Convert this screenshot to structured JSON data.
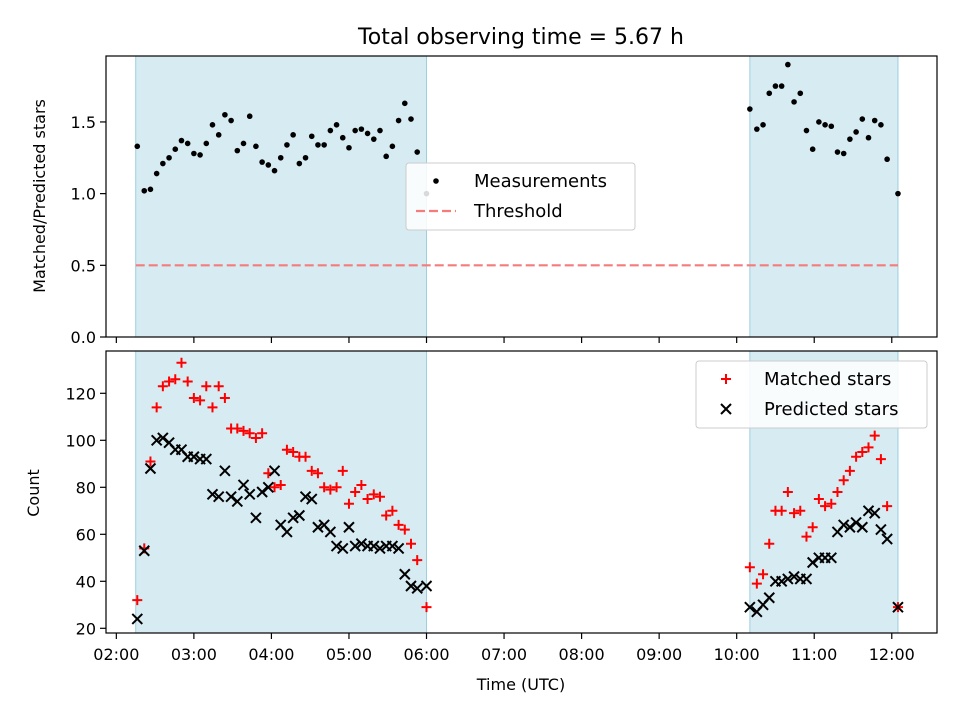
{
  "chart_data": [
    {
      "type": "scatter",
      "title": "Total observing time = 5.67 h",
      "ylabel": "Matched/Predicted stars",
      "xlabel": "",
      "ylim": [
        0,
        1.96
      ],
      "yticks": [
        "0.0",
        "0.5",
        "1.0",
        "1.5"
      ],
      "ytick_values": [
        0,
        0.5,
        1.0,
        1.5
      ],
      "xlim": [
        1.8667,
        12.5833
      ],
      "x_unit": "hours UTC",
      "shaded_intervals": [
        [
          2.25,
          6.0
        ],
        [
          10.17,
          12.08
        ]
      ],
      "threshold": 0.5,
      "threshold_range": [
        2.25,
        12.08
      ],
      "legend_placement": "center",
      "legend": [
        {
          "label": "Measurements",
          "marker": "dot",
          "color": "#000000"
        },
        {
          "label": "Threshold",
          "marker": "dashed-line",
          "color": "#f47c7c"
        }
      ],
      "series": [
        {
          "name": "Measurements",
          "color": "#000000",
          "x": [
            2.27,
            2.36,
            2.44,
            2.52,
            2.6,
            2.68,
            2.76,
            2.84,
            2.92,
            3.0,
            3.08,
            3.16,
            3.24,
            3.32,
            3.4,
            3.48,
            3.56,
            3.64,
            3.72,
            3.8,
            3.88,
            3.96,
            4.04,
            4.12,
            4.2,
            4.28,
            4.36,
            4.44,
            4.52,
            4.6,
            4.68,
            4.76,
            4.84,
            4.92,
            5.0,
            5.08,
            5.16,
            5.24,
            5.32,
            5.4,
            5.48,
            5.56,
            5.64,
            5.72,
            5.8,
            5.88,
            6.0,
            10.17,
            10.26,
            10.34,
            10.42,
            10.5,
            10.58,
            10.66,
            10.74,
            10.82,
            10.9,
            10.98,
            11.06,
            11.14,
            11.22,
            11.3,
            11.38,
            11.46,
            11.54,
            11.62,
            11.7,
            11.78,
            11.86,
            11.94,
            12.08
          ],
          "y": [
            1.33,
            1.02,
            1.03,
            1.14,
            1.21,
            1.25,
            1.31,
            1.37,
            1.35,
            1.28,
            1.27,
            1.35,
            1.48,
            1.41,
            1.55,
            1.51,
            1.3,
            1.35,
            1.54,
            1.33,
            1.22,
            1.2,
            1.16,
            1.25,
            1.34,
            1.41,
            1.21,
            1.25,
            1.4,
            1.34,
            1.34,
            1.44,
            1.48,
            1.39,
            1.32,
            1.44,
            1.45,
            1.42,
            1.38,
            1.44,
            1.26,
            1.33,
            1.51,
            1.63,
            1.52,
            1.29,
            1.0,
            1.59,
            1.45,
            1.48,
            1.7,
            1.75,
            1.75,
            1.9,
            1.64,
            1.7,
            1.44,
            1.31,
            1.5,
            1.48,
            1.47,
            1.29,
            1.28,
            1.38,
            1.43,
            1.52,
            1.39,
            1.51,
            1.48,
            1.24,
            1.0
          ]
        }
      ]
    },
    {
      "type": "scatter",
      "title": "",
      "ylabel": "Count",
      "xlabel": "Time (UTC)",
      "ylim": [
        18,
        138
      ],
      "yticks": [
        "20",
        "40",
        "60",
        "80",
        "100",
        "120"
      ],
      "ytick_values": [
        20,
        40,
        60,
        80,
        100,
        120
      ],
      "xlim": [
        1.8667,
        12.5833
      ],
      "x_unit": "hours UTC",
      "xticks": [
        "02:00",
        "03:00",
        "04:00",
        "05:00",
        "06:00",
        "07:00",
        "08:00",
        "09:00",
        "10:00",
        "11:00",
        "12:00"
      ],
      "xtick_values": [
        2,
        3,
        4,
        5,
        6,
        7,
        8,
        9,
        10,
        11,
        12
      ],
      "shaded_intervals": [
        [
          2.25,
          6.0
        ],
        [
          10.17,
          12.08
        ]
      ],
      "legend_placement": "upper right",
      "legend": [
        {
          "label": "Matched stars",
          "marker": "plus",
          "color": "#ff0000"
        },
        {
          "label": "Predicted stars",
          "marker": "x",
          "color": "#000000"
        }
      ],
      "series": [
        {
          "name": "Matched stars",
          "color": "#ff0000",
          "x": [
            2.27,
            2.36,
            2.44,
            2.52,
            2.6,
            2.68,
            2.76,
            2.84,
            2.92,
            3.0,
            3.08,
            3.16,
            3.24,
            3.32,
            3.4,
            3.48,
            3.56,
            3.64,
            3.72,
            3.8,
            3.88,
            3.96,
            4.04,
            4.12,
            4.2,
            4.28,
            4.36,
            4.44,
            4.52,
            4.6,
            4.68,
            4.76,
            4.84,
            4.92,
            5.0,
            5.08,
            5.16,
            5.24,
            5.32,
            5.4,
            5.48,
            5.56,
            5.64,
            5.72,
            5.8,
            5.88,
            6.0,
            10.17,
            10.26,
            10.34,
            10.42,
            10.5,
            10.58,
            10.66,
            10.74,
            10.82,
            10.9,
            10.98,
            11.06,
            11.14,
            11.22,
            11.3,
            11.38,
            11.46,
            11.54,
            11.62,
            11.7,
            11.78,
            11.86,
            11.94,
            12.08
          ],
          "y": [
            32,
            54,
            91,
            114,
            123,
            125,
            126,
            133,
            125,
            118,
            117,
            123,
            114,
            123,
            118,
            105,
            105,
            104,
            103,
            101,
            103,
            86,
            80,
            81,
            96,
            95,
            93,
            93,
            87,
            86,
            80,
            79,
            80,
            87,
            73,
            78,
            81,
            75,
            77,
            76,
            68,
            70,
            64,
            62,
            56,
            49,
            29,
            46,
            39,
            43,
            56,
            70,
            70,
            78,
            69,
            70,
            59,
            63,
            75,
            72,
            73,
            78,
            83,
            87,
            93,
            95,
            97,
            102,
            92,
            72,
            29
          ]
        },
        {
          "name": "Predicted stars",
          "color": "#000000",
          "x": [
            2.27,
            2.36,
            2.44,
            2.52,
            2.6,
            2.68,
            2.76,
            2.84,
            2.92,
            3.0,
            3.08,
            3.16,
            3.24,
            3.32,
            3.4,
            3.48,
            3.56,
            3.64,
            3.72,
            3.8,
            3.88,
            3.96,
            4.04,
            4.12,
            4.2,
            4.28,
            4.36,
            4.44,
            4.52,
            4.6,
            4.68,
            4.76,
            4.84,
            4.92,
            5.0,
            5.08,
            5.16,
            5.24,
            5.32,
            5.4,
            5.48,
            5.56,
            5.64,
            5.72,
            5.8,
            5.88,
            6.0,
            10.17,
            10.26,
            10.34,
            10.42,
            10.5,
            10.58,
            10.66,
            10.74,
            10.82,
            10.9,
            10.98,
            11.06,
            11.14,
            11.22,
            11.3,
            11.38,
            11.46,
            11.54,
            11.62,
            11.7,
            11.78,
            11.86,
            11.94,
            12.08
          ],
          "y": [
            24,
            53,
            88,
            100,
            101,
            99,
            96,
            96,
            93,
            93,
            92,
            92,
            77,
            76,
            87,
            76,
            74,
            81,
            77,
            67,
            78,
            80,
            87,
            64,
            61,
            67,
            68,
            76,
            75,
            63,
            64,
            61,
            55,
            54,
            63,
            55,
            56,
            55,
            55,
            54,
            55,
            55,
            54,
            43,
            38,
            37,
            38,
            29,
            27,
            30,
            33,
            40,
            40,
            41,
            42,
            41,
            41,
            48,
            50,
            50,
            50,
            61,
            64,
            63,
            65,
            63,
            70,
            69,
            62,
            58,
            29
          ]
        }
      ]
    }
  ]
}
